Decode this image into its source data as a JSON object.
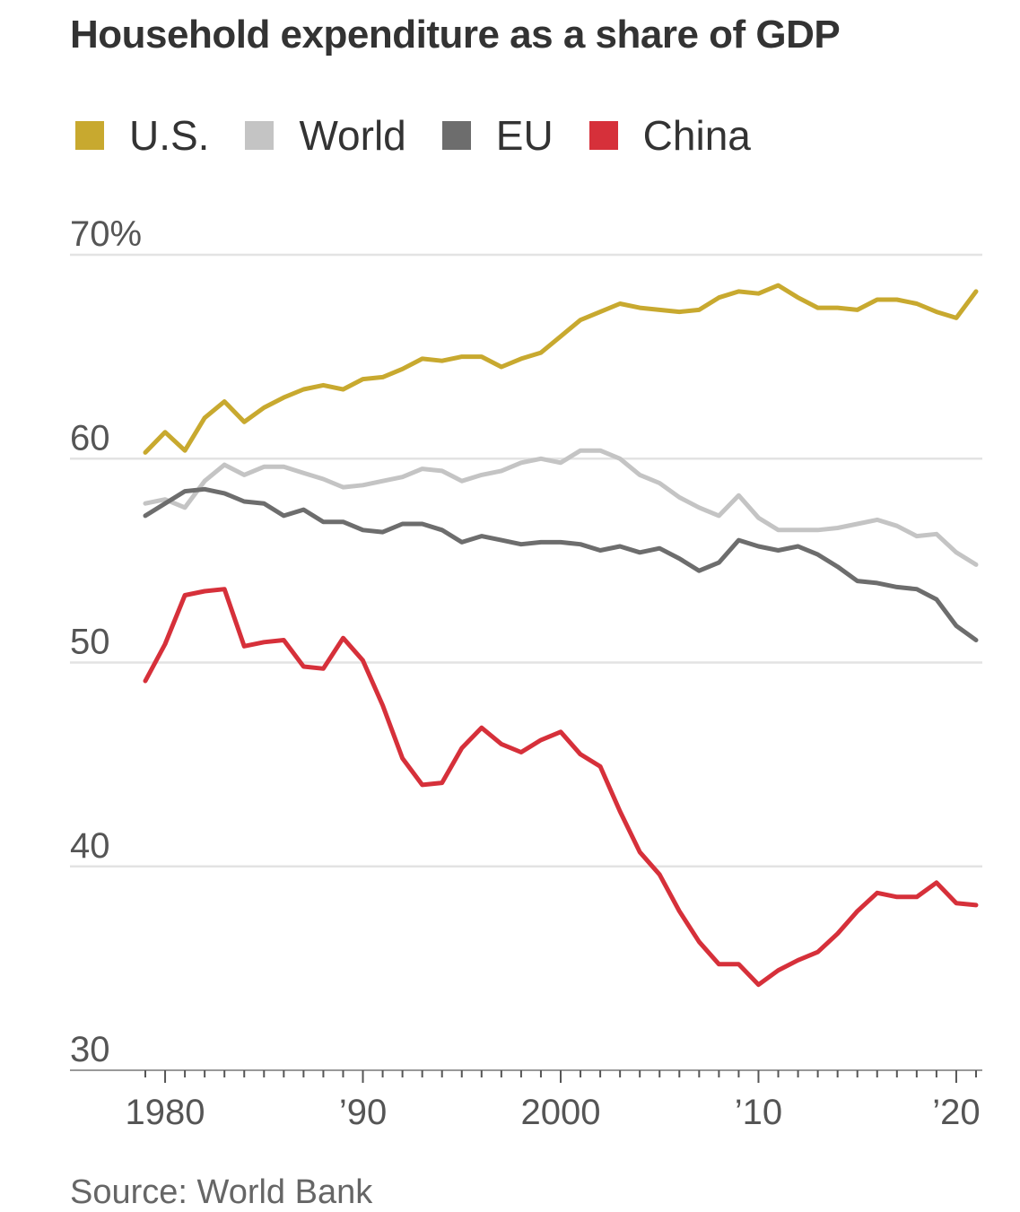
{
  "title": "Household expenditure as a share of GDP",
  "legend": [
    {
      "label": "U.S.",
      "color": "#c8a92f"
    },
    {
      "label": "World",
      "color": "#c4c4c4"
    },
    {
      "label": "EU",
      "color": "#6d6d6d"
    },
    {
      "label": "China",
      "color": "#d6303a"
    }
  ],
  "source": "Source: World Bank",
  "chart_data": {
    "type": "line",
    "title": "Household expenditure as a share of GDP",
    "xlabel": "",
    "ylabel": "",
    "xlim": [
      1979,
      2021
    ],
    "ylim": [
      30,
      70
    ],
    "y_ticks": [
      {
        "value": 70,
        "label": "70%"
      },
      {
        "value": 60,
        "label": "60"
      },
      {
        "value": 50,
        "label": "50"
      },
      {
        "value": 40,
        "label": "40"
      },
      {
        "value": 30,
        "label": "30"
      }
    ],
    "x_ticks": [
      {
        "value": 1980,
        "label": "1980"
      },
      {
        "value": 1990,
        "label": "’90"
      },
      {
        "value": 2000,
        "label": "2000"
      },
      {
        "value": 2010,
        "label": "’10"
      },
      {
        "value": 2020,
        "label": "’20"
      }
    ],
    "grid": true,
    "legend_position": "top",
    "x": [
      1979,
      1980,
      1981,
      1982,
      1983,
      1984,
      1985,
      1986,
      1987,
      1988,
      1989,
      1990,
      1991,
      1992,
      1993,
      1994,
      1995,
      1996,
      1997,
      1998,
      1999,
      2000,
      2001,
      2002,
      2003,
      2004,
      2005,
      2006,
      2007,
      2008,
      2009,
      2010,
      2011,
      2012,
      2013,
      2014,
      2015,
      2016,
      2017,
      2018,
      2019,
      2020,
      2021
    ],
    "series": [
      {
        "name": "U.S.",
        "color": "#c8a92f",
        "values": [
          60.3,
          61.3,
          60.4,
          62.0,
          62.8,
          61.8,
          62.5,
          63.0,
          63.4,
          63.6,
          63.4,
          63.9,
          64.0,
          64.4,
          64.9,
          64.8,
          65.0,
          65.0,
          64.5,
          64.9,
          65.2,
          66.0,
          66.8,
          67.2,
          67.6,
          67.4,
          67.3,
          67.2,
          67.3,
          67.9,
          68.2,
          68.1,
          68.5,
          67.9,
          67.4,
          67.4,
          67.3,
          67.8,
          67.8,
          67.6,
          67.2,
          66.9,
          68.2
        ]
      },
      {
        "name": "World",
        "color": "#c4c4c4",
        "values": [
          57.8,
          58.0,
          57.6,
          58.9,
          59.7,
          59.2,
          59.6,
          59.6,
          59.3,
          59.0,
          58.6,
          58.7,
          58.9,
          59.1,
          59.5,
          59.4,
          58.9,
          59.2,
          59.4,
          59.8,
          60.0,
          59.8,
          60.4,
          60.4,
          60.0,
          59.2,
          58.8,
          58.1,
          57.6,
          57.2,
          58.2,
          57.1,
          56.5,
          56.5,
          56.5,
          56.6,
          56.8,
          57.0,
          56.7,
          56.2,
          56.3,
          55.4,
          54.8
        ]
      },
      {
        "name": "EU",
        "color": "#6d6d6d",
        "values": [
          57.2,
          57.8,
          58.4,
          58.5,
          58.3,
          57.9,
          57.8,
          57.2,
          57.5,
          56.9,
          56.9,
          56.5,
          56.4,
          56.8,
          56.8,
          56.5,
          55.9,
          56.2,
          56.0,
          55.8,
          55.9,
          55.9,
          55.8,
          55.5,
          55.7,
          55.4,
          55.6,
          55.1,
          54.5,
          54.9,
          56.0,
          55.7,
          55.5,
          55.7,
          55.3,
          54.7,
          54.0,
          53.9,
          53.7,
          53.6,
          53.1,
          51.8,
          51.1
        ]
      },
      {
        "name": "China",
        "color": "#d6303a",
        "values": [
          49.1,
          50.9,
          53.3,
          53.5,
          53.6,
          50.8,
          51.0,
          51.1,
          49.8,
          49.7,
          51.2,
          50.1,
          47.9,
          45.3,
          44.0,
          44.1,
          45.8,
          46.8,
          46.0,
          45.6,
          46.2,
          46.6,
          45.5,
          44.9,
          42.7,
          40.7,
          39.6,
          37.8,
          36.3,
          35.2,
          35.2,
          34.2,
          34.9,
          35.4,
          35.8,
          36.7,
          37.8,
          38.7,
          38.5,
          38.5,
          39.2,
          38.2,
          38.1
        ]
      }
    ]
  }
}
